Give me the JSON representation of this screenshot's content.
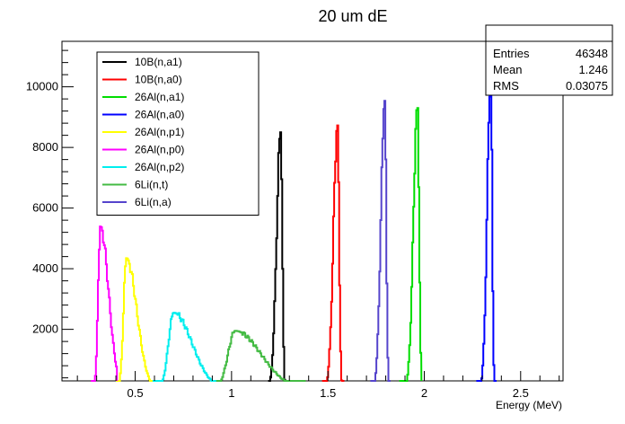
{
  "chart_data": {
    "type": "histogram",
    "title": "20 um dE",
    "xlabel": "Energy (MeV)",
    "ylabel": "",
    "xlim": [
      0.12,
      2.72
    ],
    "ylim": [
      300,
      11500
    ],
    "x_ticks": [
      0.5,
      1,
      1.5,
      2,
      2.5
    ],
    "y_ticks": [
      2000,
      4000,
      6000,
      8000,
      10000
    ],
    "grid": false,
    "legend_position": "top-left",
    "stats": {
      "title": "",
      "rows": [
        {
          "label": "Entries",
          "value": "46348"
        },
        {
          "label": "Mean",
          "value": "1.246"
        },
        {
          "label": "RMS",
          "value": "0.03075"
        }
      ]
    },
    "series": [
      {
        "name": "10B(n,a1)",
        "color": "#000000",
        "shape": "sym",
        "x0": 1.19,
        "x1": 1.29,
        "peak_x": 1.255,
        "peak": 8500,
        "spread": 0.015
      },
      {
        "name": "10B(n,a0)",
        "color": "#ff0000",
        "shape": "sym",
        "x0": 1.47,
        "x1": 1.58,
        "peak_x": 1.55,
        "peak": 8750,
        "spread": 0.015
      },
      {
        "name": "26Al(n,a1)",
        "color": "#00dd00",
        "shape": "sym",
        "x0": 1.87,
        "x1": 1.98,
        "peak_x": 1.965,
        "peak": 9400,
        "spread": 0.015
      },
      {
        "name": "26Al(n,a0)",
        "color": "#0000ff",
        "shape": "sym",
        "x0": 2.27,
        "x1": 2.37,
        "peak_x": 2.345,
        "peak": 10400,
        "spread": 0.013
      },
      {
        "name": "26Al(n,p1)",
        "color": "#ffff00",
        "shape": "tail",
        "x0": 0.4,
        "x1": 0.6,
        "peak_x": 0.455,
        "peak": 4350,
        "spread": 0.028
      },
      {
        "name": "26Al(n,p0)",
        "color": "#ff00ff",
        "shape": "tail",
        "x0": 0.27,
        "x1": 0.4,
        "peak_x": 0.32,
        "peak": 5400,
        "spread": 0.022
      },
      {
        "name": "26Al(n,p2)",
        "color": "#00eeee",
        "shape": "tail",
        "x0": 0.59,
        "x1": 0.92,
        "peak_x": 0.7,
        "peak": 2550,
        "spread": 0.05
      },
      {
        "name": "6Li(n,t)",
        "color": "#44bb44",
        "shape": "tail",
        "x0": 0.92,
        "x1": 1.38,
        "peak_x": 1.02,
        "peak": 1950,
        "spread": 0.07
      },
      {
        "name": "6Li(n,a)",
        "color": "#5544cc",
        "shape": "sym",
        "x0": 1.72,
        "x1": 1.82,
        "peak_x": 1.795,
        "peak": 9550,
        "spread": 0.014
      }
    ]
  }
}
